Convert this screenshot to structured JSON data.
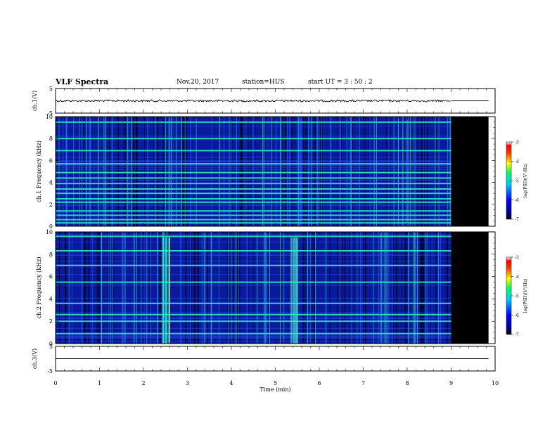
{
  "header": {
    "title": "VLF Spectra",
    "date": "Nov.20, 2017",
    "station": "station=HUS",
    "start": "start  UT =   3 : 50 : 2"
  },
  "chart_data": [
    {
      "type": "line",
      "panel": "ch1-waveform",
      "ylabel": "ch.1(V)",
      "ylim": [
        -5,
        5
      ],
      "yticks": [
        "5",
        "-5"
      ],
      "x": [
        0,
        9.0
      ],
      "series": [
        {
          "values": [
            0,
            0
          ]
        }
      ],
      "after_end": {
        "x": [
          9.0,
          9.85
        ],
        "value": 0
      }
    },
    {
      "type": "heatmap",
      "panel": "ch1-spectrogram",
      "ylabel": "ch.1 Frequency (kHz)",
      "ylim": [
        0,
        10
      ],
      "yticks": [
        "0",
        "2",
        "4",
        "6",
        "8",
        "10"
      ],
      "data_end_min": 9.0,
      "blank_end_min": 9.85,
      "bright_lines_khz": [
        0.3,
        0.6,
        1.0,
        1.4,
        2.2,
        2.5,
        3.0,
        3.4,
        3.9,
        4.4,
        4.9,
        5.7,
        6.9,
        8.0,
        9.5
      ],
      "colorbar": {
        "label": "log(PSD)(V²/Hz)",
        "ticks": [
          "-3",
          "-4",
          "-5",
          "-6",
          "-7"
        ],
        "range": [
          -7,
          -3
        ]
      }
    },
    {
      "type": "heatmap",
      "panel": "ch2-spectrogram",
      "ylabel": "ch.2 Frequency (kHz)",
      "ylim": [
        0,
        10
      ],
      "yticks": [
        "0",
        "2",
        "4",
        "6",
        "8",
        "10"
      ],
      "data_end_min": 9.0,
      "blank_end_min": 9.85,
      "bright_lines_khz": [
        0.9,
        2.0,
        2.6,
        3.6,
        5.5,
        7.0,
        8.3,
        9.6
      ],
      "bursts_min": [
        2.5,
        5.4
      ],
      "colorbar": {
        "label": "log(PSD)(V²/Hz)",
        "ticks": [
          "-3",
          "-4",
          "-5",
          "-6",
          "-7"
        ],
        "range": [
          -7,
          -3
        ]
      }
    },
    {
      "type": "line",
      "panel": "ch3-waveform",
      "ylabel": "ch.3(V)",
      "ylim": [
        -5,
        5
      ],
      "yticks": [
        "5",
        "-5"
      ],
      "x": [
        0,
        9.85
      ],
      "series": [
        {
          "values": [
            0,
            0
          ]
        }
      ]
    }
  ],
  "xaxis": {
    "label": "Time (min)",
    "ticks": [
      "0",
      "1",
      "2",
      "3",
      "4",
      "5",
      "6",
      "7",
      "8",
      "9",
      "10"
    ],
    "range": [
      0,
      10
    ]
  }
}
